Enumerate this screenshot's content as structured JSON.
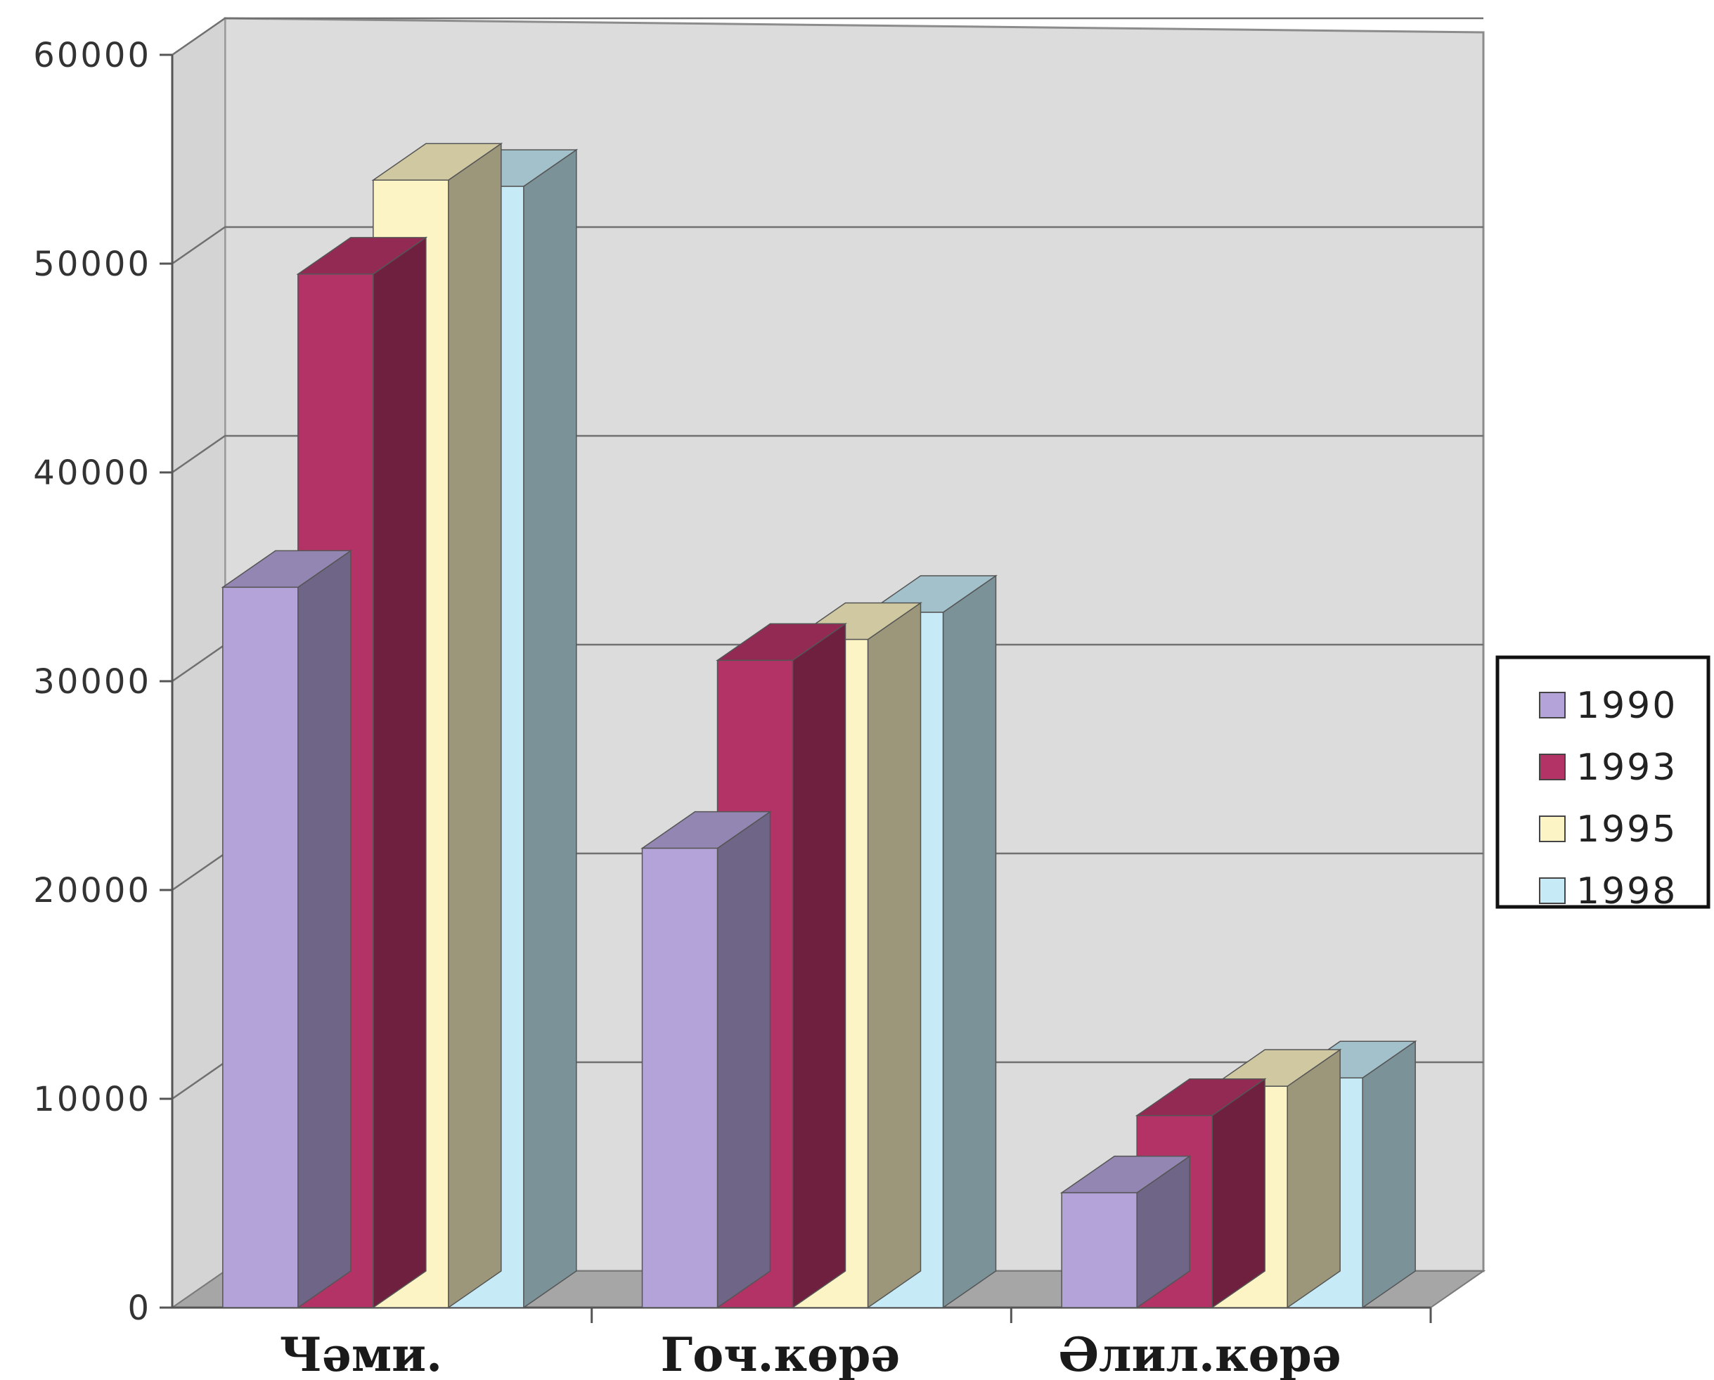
{
  "chart_data": {
    "type": "bar",
    "style": "3d-clustered-column",
    "categories": [
      "Чəми.",
      "Гоч.көрə",
      "Əлил.көрə"
    ],
    "series": [
      {
        "name": "1990",
        "values": [
          34500,
          22000,
          5500
        ],
        "color": "#b3a3d9"
      },
      {
        "name": "1993",
        "values": [
          49500,
          31000,
          9200
        ],
        "color": "#b33366"
      },
      {
        "name": "1995",
        "values": [
          54000,
          32000,
          10600
        ],
        "color": "#fcf4c4"
      },
      {
        "name": "1998",
        "values": [
          53700,
          33300,
          11000
        ],
        "color": "#c6ebf7"
      }
    ],
    "ylim": [
      0,
      60000
    ],
    "yticks": [
      "0",
      "10000",
      "20000",
      "30000",
      "40000",
      "50000",
      "60000"
    ],
    "grid": true,
    "legend": "right",
    "wall_color": "#dcdcdc",
    "floor_color": "#a6a6a6"
  }
}
